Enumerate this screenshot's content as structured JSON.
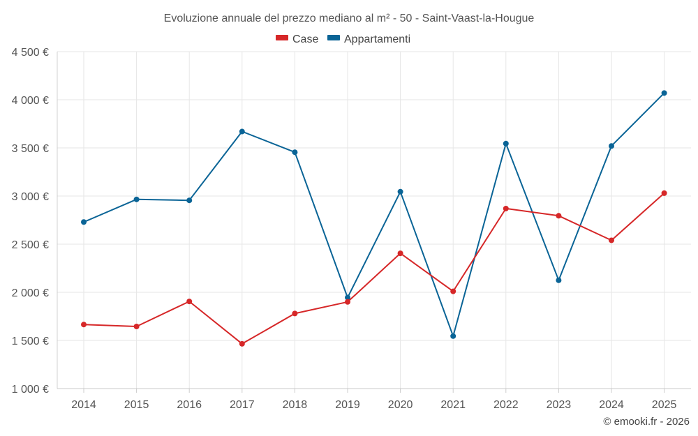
{
  "chart_data": {
    "type": "line",
    "title": "Evoluzione annuale del prezzo mediano al m² - 50 - Saint-Vaast-la-Hougue",
    "categories": [
      "2014",
      "2015",
      "2016",
      "2017",
      "2018",
      "2019",
      "2020",
      "2021",
      "2022",
      "2023",
      "2024",
      "2025"
    ],
    "series": [
      {
        "name": "Case",
        "color": "#d62728",
        "values": [
          1665,
          1645,
          1905,
          1465,
          1780,
          1900,
          2405,
          2010,
          2870,
          2795,
          2540,
          3030
        ]
      },
      {
        "name": "Appartamenti",
        "color": "#0a6496",
        "values": [
          2730,
          2965,
          2955,
          3670,
          3455,
          1945,
          3045,
          1545,
          3545,
          2125,
          3520,
          4070
        ]
      }
    ],
    "ylim": [
      1000,
      4500
    ],
    "yticks": [
      1000,
      1500,
      2000,
      2500,
      3000,
      3500,
      4000,
      4500
    ],
    "ytick_labels": [
      "1 000 €",
      "1 500 €",
      "2 000 €",
      "2 500 €",
      "3 000 €",
      "3 500 €",
      "4 000 €",
      "4 500 €"
    ],
    "grid": true,
    "legend_position": "top-center",
    "xlabel": "",
    "ylabel": ""
  },
  "credit": "© emooki.fr - 2026"
}
